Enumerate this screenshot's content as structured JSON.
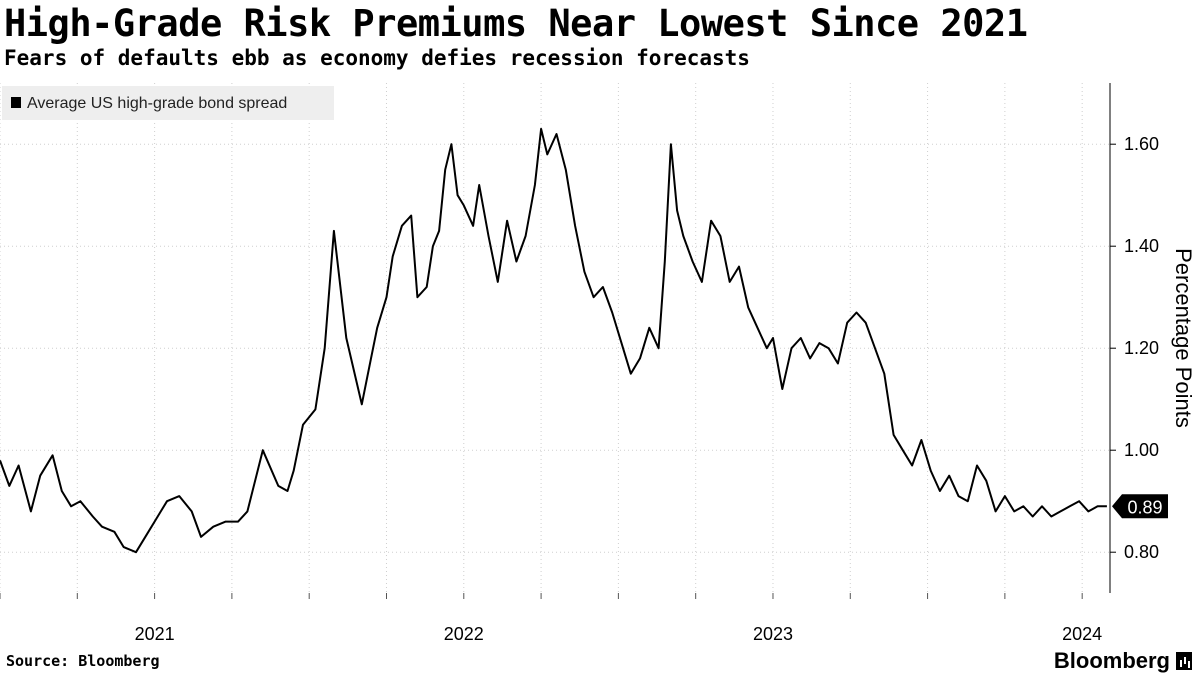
{
  "title": "High-Grade Risk Premiums Near Lowest Since 2021",
  "subtitle": "Fears of defaults ebb as economy defies recession forecasts",
  "source": "Source: Bloomberg",
  "brand": "Bloomberg",
  "colors": {
    "line": "#000000",
    "grid": "#cfcfcf",
    "legend_bg": "#eeeeee"
  },
  "chart_data": {
    "type": "line",
    "title": "High-Grade Risk Premiums Near Lowest Since 2021",
    "ylabel": "Percentage Points",
    "ylim": [
      0.72,
      1.72
    ],
    "yticks": [
      0.8,
      1.0,
      1.2,
      1.4,
      1.6
    ],
    "ytick_labels": [
      "0.80",
      "1.00",
      "1.20",
      "1.40",
      "1.60"
    ],
    "xlim": [
      2020.5,
      2024.09
    ],
    "xticks": [
      2021,
      2022,
      2023,
      2024
    ],
    "xtick_labels": [
      "2021",
      "2022",
      "2023",
      "2024"
    ],
    "grid": true,
    "legend": {
      "position": "top-left",
      "entries": [
        "Average US high-grade bond spread"
      ]
    },
    "last_value_label": "0.89",
    "series": [
      {
        "name": "Average US high-grade bond spread",
        "x": [
          2020.5,
          2020.53,
          2020.56,
          2020.6,
          2020.63,
          2020.67,
          2020.7,
          2020.73,
          2020.76,
          2020.8,
          2020.83,
          2020.87,
          2020.9,
          2020.94,
          2020.98,
          2021.0,
          2021.02,
          2021.04,
          2021.08,
          2021.12,
          2021.15,
          2021.19,
          2021.23,
          2021.27,
          2021.3,
          2021.35,
          2021.4,
          2021.43,
          2021.45,
          2021.48,
          2021.52,
          2021.55,
          2021.58,
          2021.62,
          2021.67,
          2021.7,
          2021.72,
          2021.75,
          2021.77,
          2021.8,
          2021.83,
          2021.85,
          2021.88,
          2021.9,
          2021.92,
          2021.94,
          2021.96,
          2021.98,
          2022.0,
          2022.03,
          2022.05,
          2022.08,
          2022.11,
          2022.14,
          2022.17,
          2022.2,
          2022.23,
          2022.25,
          2022.27,
          2022.3,
          2022.33,
          2022.36,
          2022.39,
          2022.42,
          2022.45,
          2022.48,
          2022.51,
          2022.54,
          2022.57,
          2022.6,
          2022.63,
          2022.65,
          2022.67,
          2022.69,
          2022.71,
          2022.74,
          2022.77,
          2022.8,
          2022.83,
          2022.86,
          2022.89,
          2022.92,
          2022.95,
          2022.98,
          2023.0,
          2023.03,
          2023.06,
          2023.09,
          2023.12,
          2023.15,
          2023.18,
          2023.21,
          2023.24,
          2023.27,
          2023.3,
          2023.33,
          2023.36,
          2023.39,
          2023.42,
          2023.45,
          2023.48,
          2023.51,
          2023.54,
          2023.57,
          2023.6,
          2023.63,
          2023.66,
          2023.69,
          2023.72,
          2023.75,
          2023.78,
          2023.81,
          2023.84,
          2023.87,
          2023.9,
          2023.93,
          2023.96,
          2023.99,
          2024.02,
          2024.05,
          2024.08
        ],
        "values": [
          0.98,
          0.93,
          0.97,
          0.88,
          0.95,
          0.99,
          0.92,
          0.89,
          0.9,
          0.87,
          0.85,
          0.84,
          0.81,
          0.8,
          0.84,
          0.86,
          0.88,
          0.9,
          0.91,
          0.88,
          0.83,
          0.85,
          0.86,
          0.86,
          0.88,
          1.0,
          0.93,
          0.92,
          0.96,
          1.05,
          1.08,
          1.2,
          1.43,
          1.22,
          1.09,
          1.18,
          1.24,
          1.3,
          1.38,
          1.44,
          1.46,
          1.3,
          1.32,
          1.4,
          1.43,
          1.55,
          1.6,
          1.5,
          1.48,
          1.44,
          1.52,
          1.42,
          1.33,
          1.45,
          1.37,
          1.42,
          1.52,
          1.63,
          1.58,
          1.62,
          1.55,
          1.44,
          1.35,
          1.3,
          1.32,
          1.27,
          1.21,
          1.15,
          1.18,
          1.24,
          1.2,
          1.37,
          1.6,
          1.47,
          1.42,
          1.37,
          1.33,
          1.45,
          1.42,
          1.33,
          1.36,
          1.28,
          1.24,
          1.2,
          1.22,
          1.12,
          1.2,
          1.22,
          1.18,
          1.21,
          1.2,
          1.17,
          1.25,
          1.27,
          1.25,
          1.2,
          1.15,
          1.03,
          1.0,
          0.97,
          1.02,
          0.96,
          0.92,
          0.95,
          0.91,
          0.9,
          0.97,
          0.94,
          0.88,
          0.91,
          0.88,
          0.89,
          0.87,
          0.89,
          0.87,
          0.88,
          0.89,
          0.9,
          0.88,
          0.89,
          0.89
        ]
      }
    ]
  }
}
